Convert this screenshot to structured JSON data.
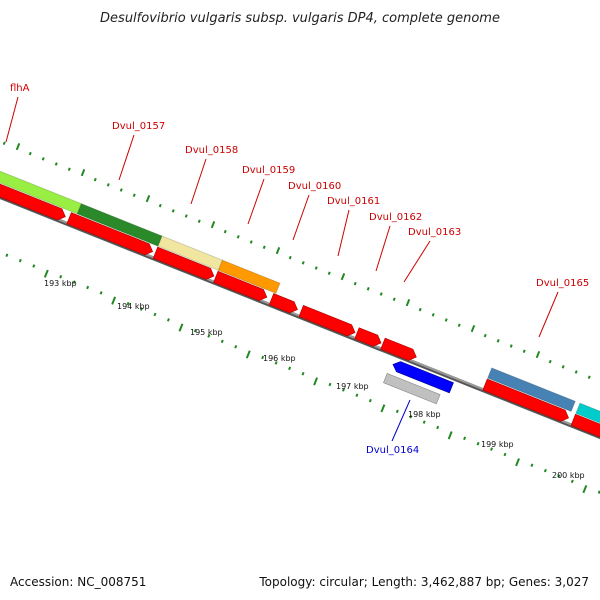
{
  "title": "Desulfovibrio vulgaris subsp. vulgaris DP4, complete genome",
  "footer": {
    "accession": "Accession: NC_008751",
    "topology": "Topology: circular; Length: 3,462,887 bp; Genes: 3,027"
  },
  "colors": {
    "forward_label": "#cc0000",
    "reverse_label": "#0000cc",
    "cds_forward": "#ff0000",
    "cds_reverse": "#0000ff",
    "gene_reverse": "#c0c0c0",
    "tick": "#228822",
    "backbone": "#808080"
  },
  "gene_labels": [
    {
      "text": "flhA",
      "strand": "forward"
    },
    {
      "text": "Dvul_0157",
      "strand": "forward"
    },
    {
      "text": "Dvul_0158",
      "strand": "forward"
    },
    {
      "text": "Dvul_0159",
      "strand": "forward"
    },
    {
      "text": "Dvul_0160",
      "strand": "forward"
    },
    {
      "text": "Dvul_0161",
      "strand": "forward"
    },
    {
      "text": "Dvul_0162",
      "strand": "forward"
    },
    {
      "text": "Dvul_0163",
      "strand": "forward"
    },
    {
      "text": "Dvul_0165",
      "strand": "forward"
    },
    {
      "text": "Dvul_0164",
      "strand": "reverse"
    }
  ],
  "scale_labels": [
    "193 kbp",
    "194 kbp",
    "195 kbp",
    "196 kbp",
    "197 kbp",
    "198 kbp",
    "199 kbp",
    "200 kbp"
  ],
  "tracks": {
    "gene_colors": [
      "#99ee44",
      "#2a8a2a",
      "#f0e6a0",
      "#ff9900",
      "#4682b4",
      "#00cccc"
    ]
  }
}
